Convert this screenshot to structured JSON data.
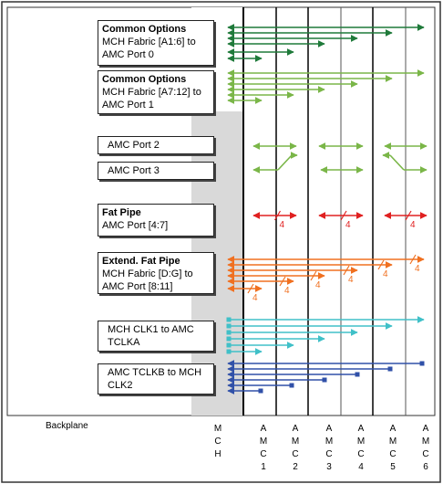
{
  "boxes": [
    {
      "title": "Common Options",
      "lines": [
        "MCH Fabric [A1:6] to",
        "AMC Port 0"
      ]
    },
    {
      "title": "Common Options",
      "lines": [
        "MCH Fabric [A7:12] to",
        "AMC Port 1"
      ]
    },
    {
      "title": "",
      "lines": [
        "AMC Port 2"
      ]
    },
    {
      "title": "",
      "lines": [
        "AMC Port 3"
      ]
    },
    {
      "title": "Fat Pipe",
      "lines": [
        "AMC Port [4:7]"
      ]
    },
    {
      "title": "Extend. Fat Pipe",
      "lines": [
        "MCH Fabric [D:G] to",
        "AMC Port [8:11]"
      ]
    },
    {
      "title": "",
      "lines": [
        "MCH CLK1 to AMC",
        "TCLKA"
      ]
    },
    {
      "title": "",
      "lines": [
        "AMC TCLKB to MCH",
        "CLK2"
      ]
    }
  ],
  "backplane_label": "Backplane",
  "columns": [
    {
      "label": "M\nC\nH"
    },
    {
      "label": "A\nM\nC\n1"
    },
    {
      "label": "A\nM\nC\n2"
    },
    {
      "label": "A\nM\nC\n3"
    },
    {
      "label": "A\nM\nC\n4"
    },
    {
      "label": "A\nM\nC\n5"
    },
    {
      "label": "A\nM\nC\n6"
    }
  ],
  "width_label": "4",
  "colors": {
    "common0": "#1f7a3a",
    "common1": "#7ab648",
    "fatpipe": "#e02020",
    "extfat": "#f07020",
    "clk1": "#40c0c8",
    "clk2": "#3050a8",
    "mch_shade": "#d9d9d9"
  }
}
